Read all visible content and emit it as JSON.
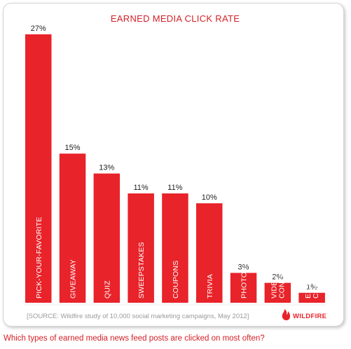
{
  "chart_data": {
    "type": "bar",
    "title": "EARNED MEDIA CLICK RATE",
    "categories": [
      "PICK-YOUR-FAVORITE",
      "GIVEAWAY",
      "QUIZ",
      "SWEEPSTAKES",
      "COUPONS",
      "TRIVIA",
      "PHOTO CONTEST",
      "VIDEO CONTEST",
      "ESSAY CONTEST"
    ],
    "category_lines": [
      [
        "PICK-YOUR-FAVORITE"
      ],
      [
        "GIVEAWAY"
      ],
      [
        "QUIZ"
      ],
      [
        "SWEEPSTAKES"
      ],
      [
        "COUPONS"
      ],
      [
        "TRIVIA"
      ],
      [
        "PHOTO CONTEST"
      ],
      [
        "VIDEO",
        "CONTEST"
      ],
      [
        "ESSAY",
        "CONTEST"
      ]
    ],
    "values": [
      27,
      15,
      13,
      11,
      11,
      10,
      3,
      2,
      1
    ],
    "value_labels": [
      "27%",
      "15%",
      "13%",
      "11%",
      "11%",
      "10%",
      "3%",
      "2%",
      "1%"
    ],
    "unit": "%",
    "xlabel": "",
    "ylabel": "",
    "grid": false,
    "legend": "none",
    "bar_color": "#e8232a"
  },
  "source": "[SOURCE: Wildfire study of 10,000 social marketing campaigns, May 2012]",
  "brand": {
    "name": "WILDFIRE",
    "logo_icon": "flame-icon",
    "color": "#e8232a"
  },
  "caption": "Which types of earned media news feed posts are clicked on most often?",
  "colors": {
    "title": "#d42027",
    "source_text": "#9a9a9a",
    "caption": "#d42027"
  }
}
